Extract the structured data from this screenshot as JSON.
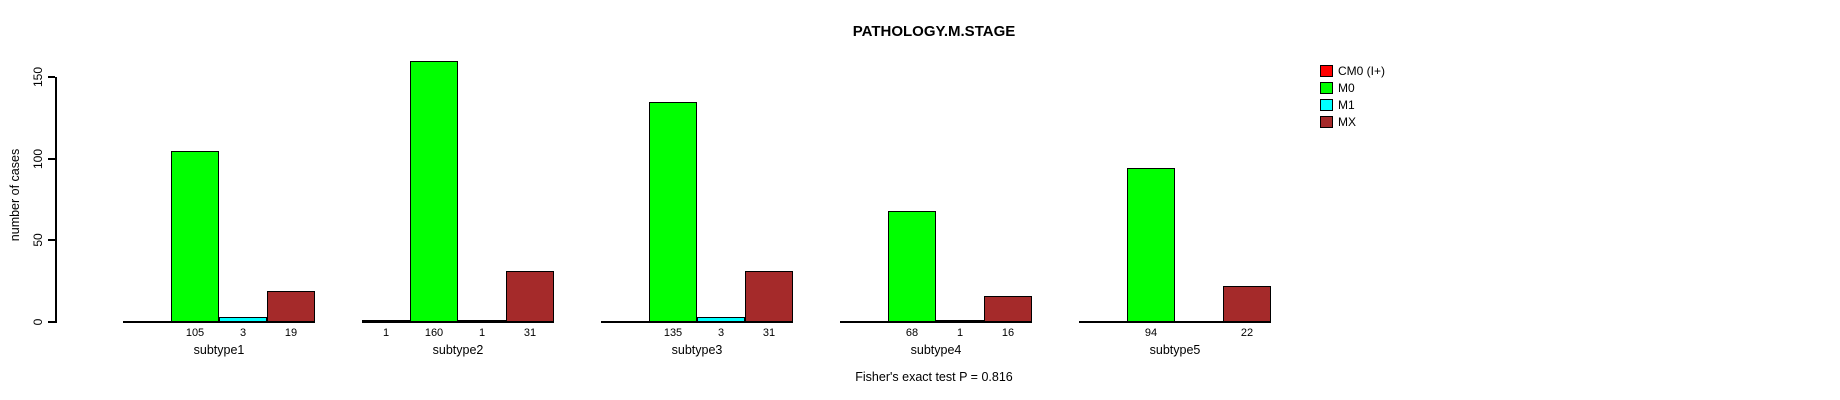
{
  "title": "PATHOLOGY.M.STAGE",
  "footer": "Fisher's exact test P = 0.816",
  "y_axis": {
    "label": "number of cases",
    "ticks": [
      0,
      50,
      100,
      150
    ]
  },
  "legend": {
    "position": "right",
    "items": [
      {
        "label": "CM0 (I+)",
        "color": "#FF0000"
      },
      {
        "label": "M0",
        "color": "#00FF00"
      },
      {
        "label": "M1",
        "color": "#00FFFF"
      },
      {
        "label": "MX",
        "color": "#A52A2A"
      }
    ]
  },
  "chart_data": {
    "type": "bar",
    "grouped": true,
    "title": "PATHOLOGY.M.STAGE",
    "xlabel": "",
    "ylabel": "number of cases",
    "categories": [
      "subtype1",
      "subtype2",
      "subtype3",
      "subtype4",
      "subtype5"
    ],
    "series": [
      {
        "name": "CM0 (I+)",
        "color": "#FF0000",
        "values": [
          0,
          1,
          0,
          0,
          0
        ]
      },
      {
        "name": "M0",
        "color": "#00FF00",
        "values": [
          105,
          160,
          135,
          68,
          94
        ]
      },
      {
        "name": "M1",
        "color": "#00FFFF",
        "values": [
          3,
          1,
          3,
          1,
          0
        ]
      },
      {
        "name": "MX",
        "color": "#A52A2A",
        "values": [
          19,
          31,
          31,
          16,
          22
        ]
      }
    ],
    "value_labels": "counts shown under each bar, zero counts omitted",
    "yticks": [
      0,
      50,
      100,
      150
    ],
    "ylim": [
      0,
      160
    ],
    "grid": false,
    "legend_position": "right",
    "annotation": "Fisher's exact test P = 0.816"
  }
}
